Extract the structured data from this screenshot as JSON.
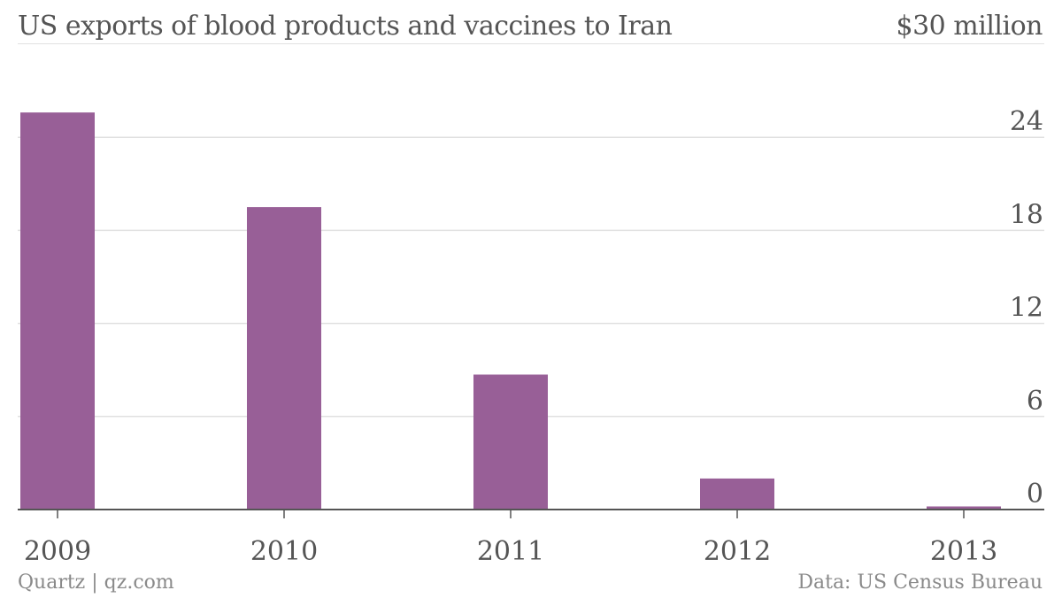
{
  "header": {
    "title": "US exports of blood products and vaccines to Iran",
    "unit_label": "$30 million"
  },
  "footer": {
    "source_left": "Quartz | qz.com",
    "source_right": "Data: US Census Bureau"
  },
  "colors": {
    "bar": "#985f97",
    "grid": "#e0e0e0",
    "axis": "#555555",
    "text": "#555555",
    "footer_text": "#8a8a8a"
  },
  "chart_data": {
    "type": "bar",
    "title": "US exports of blood products and vaccines to Iran",
    "unit": "$30 million",
    "xlabel": "",
    "ylabel": "",
    "categories": [
      "2009",
      "2010",
      "2011",
      "2012",
      "2013"
    ],
    "values": [
      25.6,
      19.5,
      8.7,
      2.0,
      0.2
    ],
    "ylim": [
      0,
      30
    ],
    "yticks": [
      "0",
      "6",
      "12",
      "18",
      "24"
    ],
    "ytick_values": [
      0,
      6,
      12,
      18,
      24
    ],
    "grid": true,
    "y_axis_side": "right",
    "legend": "none"
  }
}
